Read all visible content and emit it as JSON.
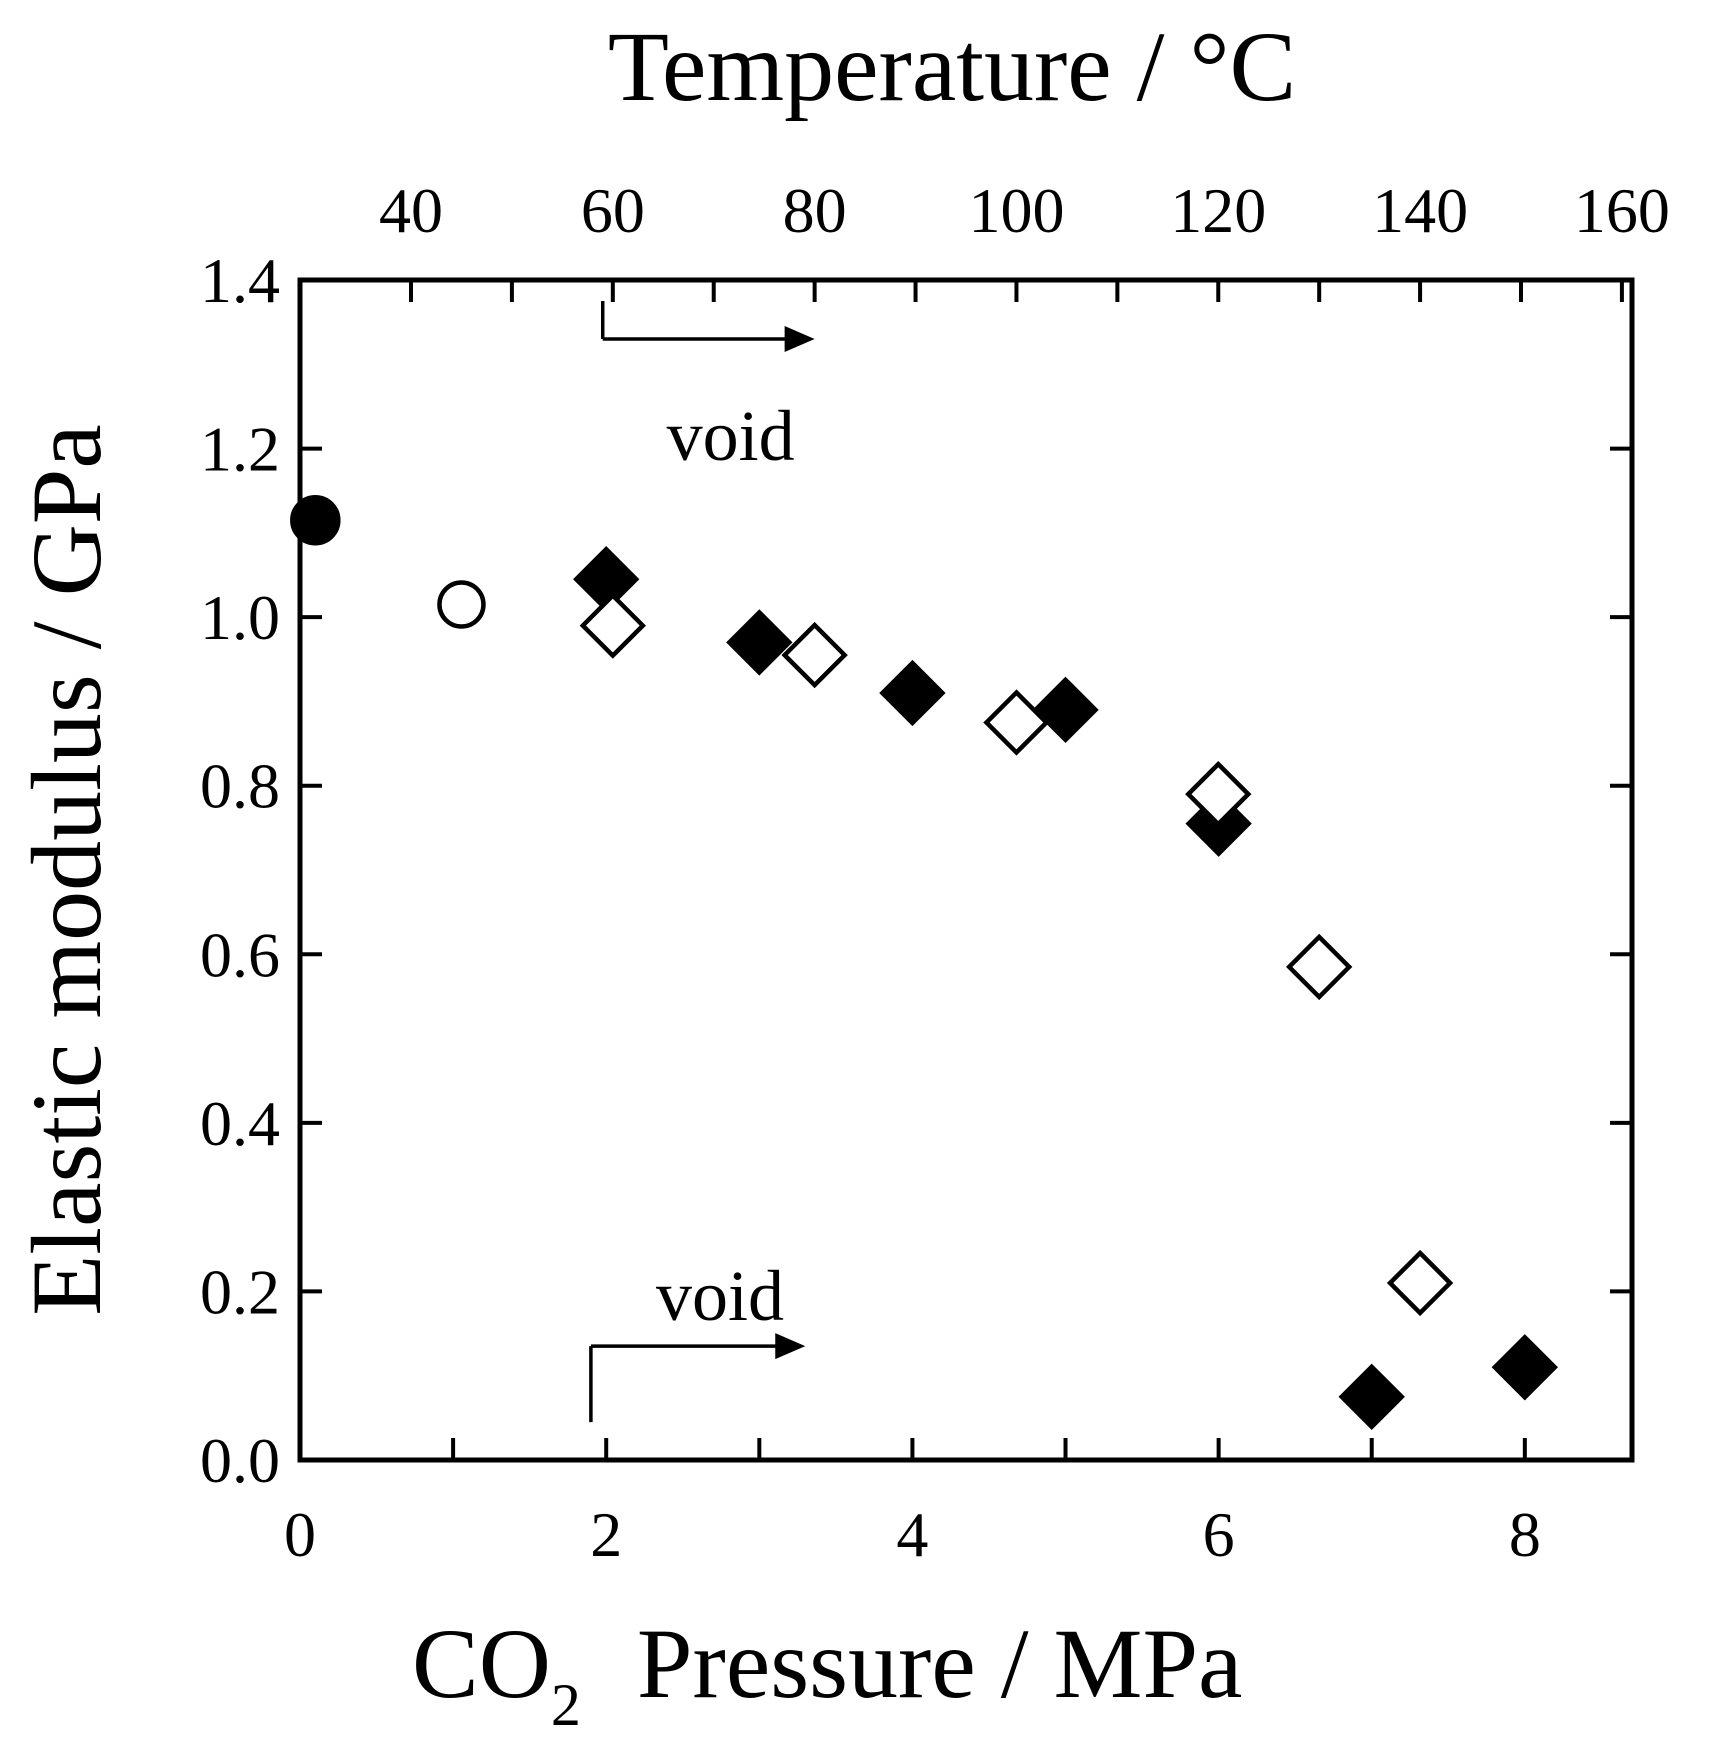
{
  "chart_data": {
    "type": "scatter",
    "title": "",
    "xlabel": "CO",
    "xlabel_subscript": "2",
    "xlabel_rest": "Pressure / MPa",
    "ylabel": "Elastic modulus / GPa",
    "x2label": "Temperature / °C",
    "xlim": [
      0,
      8.7
    ],
    "ylim": [
      0,
      1.4
    ],
    "x2lim": [
      29,
      161
    ],
    "xticks": [
      0,
      2,
      4,
      6,
      8
    ],
    "xtick_labels": [
      "0",
      "2",
      "4",
      "6",
      "8"
    ],
    "xminor": [
      1,
      3,
      5,
      7
    ],
    "yticks": [
      0,
      0.2,
      0.4,
      0.6,
      0.8,
      1.0,
      1.2,
      1.4
    ],
    "ytick_labels": [
      "0.0",
      "0.2",
      "0.4",
      "0.6",
      "0.8",
      "1.0",
      "1.2",
      "1.4"
    ],
    "x2ticks": [
      40,
      60,
      80,
      100,
      120,
      140,
      160
    ],
    "x2tick_labels": [
      "40",
      "60",
      "80",
      "100",
      "120",
      "140",
      "160"
    ],
    "x2minor": [
      50,
      70,
      90,
      110,
      130,
      150
    ],
    "series": [
      {
        "name": "filled-circle",
        "axis": "pressure",
        "marker": "circle",
        "filled": true,
        "x": [
          0.1
        ],
        "y": [
          1.115
        ]
      },
      {
        "name": "open-circle",
        "axis": "temperature",
        "marker": "circle",
        "filled": false,
        "x": [
          45
        ],
        "y": [
          1.015
        ]
      },
      {
        "name": "filled-diamond-pressure",
        "axis": "pressure",
        "marker": "diamond",
        "filled": true,
        "x": [
          2.0,
          3.0,
          4.0,
          5.0,
          6.0,
          7.0,
          8.0
        ],
        "y": [
          1.045,
          0.97,
          0.91,
          0.89,
          0.755,
          0.075,
          0.11
        ]
      },
      {
        "name": "open-diamond-temperature",
        "axis": "temperature",
        "marker": "diamond",
        "filled": false,
        "x": [
          60,
          80,
          100,
          120,
          130,
          140
        ],
        "y": [
          0.99,
          0.955,
          0.875,
          0.79,
          0.585,
          0.21
        ]
      }
    ],
    "annotations": [
      {
        "text": "void",
        "axis": "temperature",
        "arrow_from": 59,
        "arrow_to": 80,
        "y": 1.33,
        "text_y": 1.21
      },
      {
        "text": "void",
        "axis": "pressure",
        "arrow_from": 1.9,
        "arrow_to": 3.3,
        "y": 0.09,
        "text_y": 0.19
      }
    ]
  }
}
